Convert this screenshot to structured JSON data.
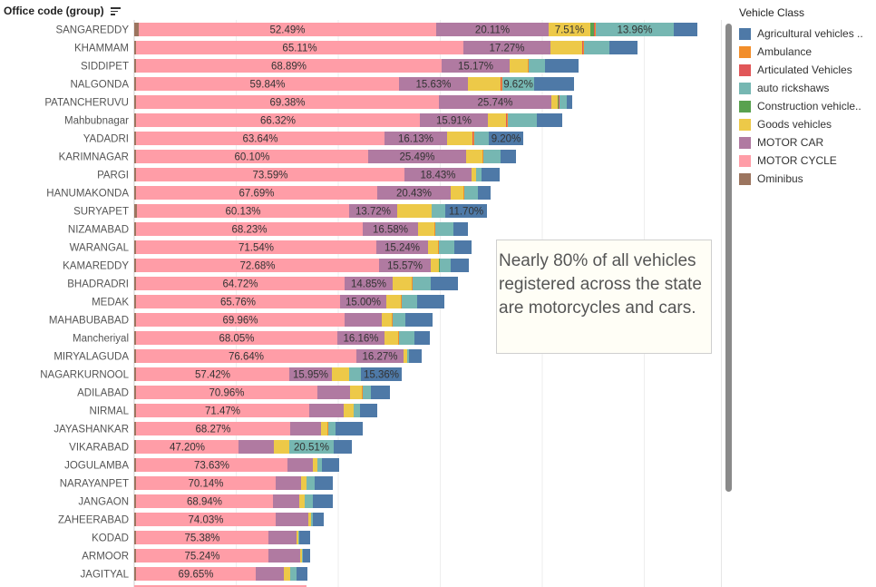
{
  "header": {
    "title": "Office code (group)",
    "sort_icon": "sort-descending-icon"
  },
  "legend": {
    "title": "Vehicle Class",
    "items": [
      {
        "label": "Agricultural vehicles ..",
        "color": "#4e79a7"
      },
      {
        "label": "Ambulance",
        "color": "#f28e2b"
      },
      {
        "label": "Articulated Vehicles",
        "color": "#e15759"
      },
      {
        "label": "auto rickshaws",
        "color": "#76b7b2"
      },
      {
        "label": "Construction vehicle..",
        "color": "#59a14f"
      },
      {
        "label": "Goods vehicles",
        "color": "#edc948"
      },
      {
        "label": "MOTOR CAR",
        "color": "#b07aa1"
      },
      {
        "label": "MOTOR CYCLE",
        "color": "#ff9da7"
      },
      {
        "label": "Ominibus",
        "color": "#9c755f"
      }
    ]
  },
  "annotation": {
    "text": "Nearly 80% of all vehicles registered across the state are motorcycles and cars."
  },
  "chart_data": {
    "type": "bar",
    "orientation": "horizontal-stacked",
    "title": "",
    "xlabel": "",
    "ylabel": "Office code (group)",
    "unit": "relative vehicle count (approx.)",
    "xlim": [
      0,
      650
    ],
    "gridlines": [
      0,
      112.5,
      225,
      337.5,
      450,
      562.5
    ],
    "series_order": [
      "Ominibus",
      "MOTOR CYCLE",
      "MOTOR CAR",
      "Goods vehicles",
      "Construction vehicle..",
      "Articulated Vehicles",
      "Ambulance",
      "auto rickshaws",
      "Agricultural vehicles .."
    ],
    "series_colors": {
      "Ominibus": "#9c755f",
      "MOTOR CYCLE": "#ff9da7",
      "MOTOR CAR": "#b07aa1",
      "Goods vehicles": "#edc948",
      "Construction vehicle..": "#59a14f",
      "Articulated Vehicles": "#e15759",
      "Ambulance": "#f28e2b",
      "auto rickshaws": "#76b7b2",
      "Agricultural vehicles ..": "#4e79a7"
    },
    "rows": [
      {
        "office": "SANGAREDDY",
        "values": [
          5,
          328,
          124,
          46,
          4,
          1,
          1,
          86,
          26
        ],
        "labels": [
          "",
          "52.49%",
          "20.11%",
          "7.51%",
          "",
          "",
          "",
          "13.96%",
          ""
        ]
      },
      {
        "office": "KHAMMAM",
        "values": [
          2,
          361,
          96,
          35,
          0,
          1,
          1,
          28,
          31
        ],
        "labels": [
          "",
          "65.11%",
          "17.27%",
          "",
          "",
          "",
          "",
          "",
          ""
        ]
      },
      {
        "office": "SIDDIPET",
        "values": [
          2,
          337,
          75,
          20,
          0,
          0,
          1,
          18,
          37
        ],
        "labels": [
          "",
          "68.89%",
          "15.17%",
          "",
          "",
          "",
          "",
          "",
          ""
        ]
      },
      {
        "office": "NALGONDA",
        "values": [
          2,
          290,
          76,
          36,
          0,
          1,
          1,
          35,
          44
        ],
        "labels": [
          "",
          "59.84%",
          "15.63%",
          "",
          "",
          "",
          "",
          "9.62%",
          ""
        ]
      },
      {
        "office": "PATANCHERUVU",
        "values": [
          2,
          334,
          124,
          7,
          1,
          1,
          0,
          8,
          6
        ],
        "labels": [
          "",
          "69.38%",
          "25.74%",
          "",
          "",
          "",
          "",
          "",
          ""
        ]
      },
      {
        "office": "Mahbubnagar",
        "values": [
          2,
          313,
          75,
          20,
          0,
          1,
          1,
          32,
          28
        ],
        "labels": [
          "",
          "66.32%",
          "15.91%",
          "",
          "",
          "",
          "",
          "",
          ""
        ]
      },
      {
        "office": "YADADRI",
        "values": [
          2,
          274,
          69,
          28,
          0,
          1,
          1,
          16,
          38
        ],
        "labels": [
          "",
          "63.64%",
          "16.13%",
          "",
          "",
          "",
          "",
          "",
          "9.20%"
        ]
      },
      {
        "office": "KARIMNAGAR",
        "values": [
          2,
          256,
          108,
          18,
          0,
          0,
          1,
          19,
          17
        ],
        "labels": [
          "",
          "60.10%",
          "25.49%",
          "",
          "",
          "",
          "",
          "",
          ""
        ]
      },
      {
        "office": "PARGI",
        "values": [
          2,
          296,
          74,
          5,
          0,
          0,
          0,
          6,
          20
        ],
        "labels": [
          "",
          "73.59%",
          "18.43%",
          "",
          "",
          "",
          "",
          "",
          ""
        ]
      },
      {
        "office": "HANUMAKONDA",
        "values": [
          2,
          266,
          81,
          14,
          0,
          0,
          1,
          15,
          14
        ],
        "labels": [
          "",
          "67.69%",
          "20.43%",
          "",
          "",
          "",
          "",
          "",
          ""
        ]
      },
      {
        "office": "SURYAPET",
        "values": [
          3,
          234,
          53,
          38,
          0,
          0,
          0,
          15,
          46
        ],
        "labels": [
          "",
          "60.13%",
          "13.72%",
          "",
          "",
          "",
          "",
          "",
          "11.70%"
        ]
      },
      {
        "office": "NIZAMABAD",
        "values": [
          2,
          250,
          61,
          18,
          0,
          0,
          1,
          20,
          16
        ],
        "labels": [
          "",
          "68.23%",
          "16.58%",
          "",
          "",
          "",
          "",
          "",
          ""
        ]
      },
      {
        "office": "WARANGAL",
        "values": [
          2,
          265,
          57,
          11,
          0,
          0,
          1,
          17,
          19
        ],
        "labels": [
          "",
          "71.54%",
          "15.24%",
          "",
          "",
          "",
          "",
          "",
          ""
        ]
      },
      {
        "office": "KAMAREDDY",
        "values": [
          2,
          268,
          57,
          9,
          1,
          0,
          0,
          12,
          20
        ],
        "labels": [
          "",
          "72.68%",
          "15.57%",
          "",
          "",
          "",
          "",
          "",
          ""
        ]
      },
      {
        "office": "BHADRADRI",
        "values": [
          2,
          230,
          53,
          21,
          0,
          0,
          1,
          20,
          30
        ],
        "labels": [
          "",
          "64.72%",
          "14.85%",
          "",
          "",
          "",
          "",
          "",
          ""
        ]
      },
      {
        "office": "MEDAK",
        "values": [
          2,
          225,
          51,
          16,
          0,
          0,
          1,
          17,
          30
        ],
        "labels": [
          "",
          "65.76%",
          "15.00%",
          "",
          "",
          "",
          "",
          "",
          ""
        ]
      },
      {
        "office": "MAHABUBABAD",
        "values": [
          2,
          230,
          41,
          11,
          0,
          0,
          1,
          14,
          30
        ],
        "labels": [
          "",
          "69.96%",
          "",
          "",
          "",
          "",
          "",
          "",
          ""
        ]
      },
      {
        "office": "Mancheriyal",
        "values": [
          2,
          222,
          52,
          15,
          0,
          0,
          1,
          17,
          17
        ],
        "labels": [
          "",
          "68.05%",
          "16.16%",
          "",
          "",
          "",
          "",
          "",
          ""
        ]
      },
      {
        "office": "MIRYALAGUDA",
        "values": [
          2,
          243,
          52,
          4,
          0,
          0,
          0,
          2,
          14
        ],
        "labels": [
          "",
          "76.64%",
          "16.27%",
          "",
          "",
          "",
          "",
          "",
          ""
        ]
      },
      {
        "office": "NAGARKURNOOL",
        "values": [
          2,
          169,
          47,
          19,
          0,
          0,
          0,
          13,
          45
        ],
        "labels": [
          "",
          "57.42%",
          "15.95%",
          "",
          "",
          "",
          "",
          "",
          "15.36%"
        ]
      },
      {
        "office": "ADILABAD",
        "values": [
          2,
          200,
          36,
          13,
          0,
          0,
          1,
          9,
          21
        ],
        "labels": [
          "",
          "70.96%",
          "",
          "",
          "",
          "",
          "",
          "",
          ""
        ]
      },
      {
        "office": "NIRMAL",
        "values": [
          2,
          191,
          38,
          11,
          0,
          0,
          0,
          7,
          19
        ],
        "labels": [
          "",
          "71.47%",
          "",
          "",
          "",
          "",
          "",
          "",
          ""
        ]
      },
      {
        "office": "JAYASHANKAR",
        "values": [
          2,
          170,
          34,
          7,
          0,
          0,
          1,
          8,
          30
        ],
        "labels": [
          "",
          "68.27%",
          "",
          "",
          "",
          "",
          "",
          "",
          ""
        ]
      },
      {
        "office": "VIKARABAD",
        "values": [
          2,
          113,
          39,
          17,
          0,
          0,
          0,
          49,
          20
        ],
        "labels": [
          "",
          "47.20%",
          "",
          "",
          "",
          "",
          "",
          "20.51%",
          ""
        ]
      },
      {
        "office": "JOGULAMBA",
        "values": [
          2,
          167,
          28,
          5,
          0,
          0,
          0,
          5,
          19
        ],
        "labels": [
          "",
          "73.63%",
          "",
          "",
          "",
          "",
          "",
          "",
          ""
        ]
      },
      {
        "office": "NARAYANPET",
        "values": [
          2,
          154,
          28,
          6,
          0,
          0,
          0,
          9,
          20
        ],
        "labels": [
          "",
          "70.14%",
          "",
          "",
          "",
          "",
          "",
          "",
          ""
        ]
      },
      {
        "office": "JANGAON",
        "values": [
          2,
          151,
          29,
          6,
          0,
          0,
          0,
          9,
          22
        ],
        "labels": [
          "",
          "68.94%",
          "",
          "",
          "",
          "",
          "",
          "",
          ""
        ]
      },
      {
        "office": "ZAHEERABAD",
        "values": [
          2,
          154,
          36,
          3,
          0,
          0,
          0,
          2,
          12
        ],
        "labels": [
          "",
          "74.03%",
          "",
          "",
          "",
          "",
          "",
          "",
          ""
        ]
      },
      {
        "office": "KODAD",
        "values": [
          2,
          146,
          31,
          2,
          0,
          0,
          0,
          1,
          12
        ],
        "labels": [
          "",
          "75.38%",
          "",
          "",
          "",
          "",
          "",
          "",
          ""
        ]
      },
      {
        "office": "ARMOOR",
        "values": [
          2,
          146,
          35,
          2,
          0,
          0,
          0,
          1,
          8
        ],
        "labels": [
          "",
          "75.24%",
          "",
          "",
          "",
          "",
          "",
          "",
          ""
        ]
      },
      {
        "office": "JAGITYAL",
        "values": [
          2,
          132,
          31,
          7,
          0,
          0,
          0,
          7,
          12
        ],
        "labels": [
          "",
          "69.65%",
          "",
          "",
          "",
          "",
          "",
          "",
          ""
        ]
      }
    ]
  }
}
